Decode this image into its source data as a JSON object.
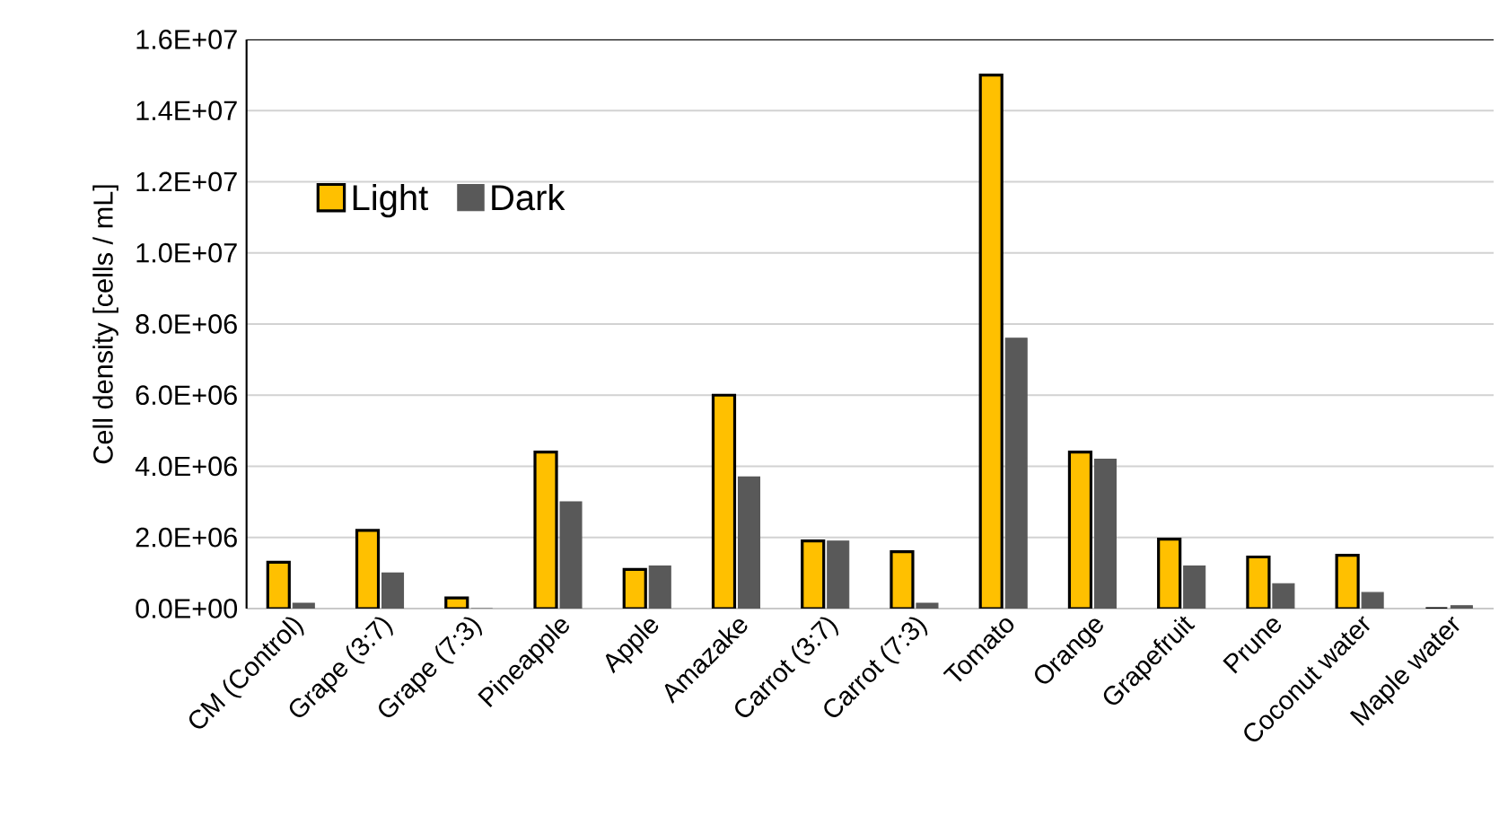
{
  "chart_data": {
    "type": "bar",
    "ylabel": "Cell density [cells / mL]",
    "categories": [
      "CM (Control)",
      "Grape (3:7)",
      "Grape (7:3)",
      "Pineapple",
      "Apple",
      "Amazake",
      "Carrot (3:7)",
      "Carrot (7:3)",
      "Tomato",
      "Orange",
      "Grapefruit",
      "Prune",
      "Coconut water",
      "Maple water"
    ],
    "series": [
      {
        "name": "Light",
        "color": "#ffc000",
        "values": [
          1300000,
          2200000,
          300000,
          4400000,
          1100000,
          6000000,
          1900000,
          1600000,
          15000000,
          4400000,
          1950000,
          1450000,
          1500000,
          0
        ]
      },
      {
        "name": "Dark",
        "color": "#595959",
        "values": [
          150000,
          1000000,
          0,
          3000000,
          1200000,
          3700000,
          1900000,
          150000,
          7600000,
          4200000,
          1200000,
          700000,
          450000,
          80000
        ]
      }
    ],
    "ylim": [
      0,
      16000000
    ],
    "yticks": [
      {
        "value": 0,
        "label": "0.0E+00"
      },
      {
        "value": 2000000,
        "label": "2.0E+06"
      },
      {
        "value": 4000000,
        "label": "4.0E+06"
      },
      {
        "value": 6000000,
        "label": "6.0E+06"
      },
      {
        "value": 8000000,
        "label": "8.0E+06"
      },
      {
        "value": 10000000,
        "label": "1.0E+07"
      },
      {
        "value": 12000000,
        "label": "1.2E+07"
      },
      {
        "value": 14000000,
        "label": "1.4E+07"
      },
      {
        "value": 16000000,
        "label": "1.6E+07"
      }
    ],
    "grid": "y",
    "legend": "top left"
  }
}
